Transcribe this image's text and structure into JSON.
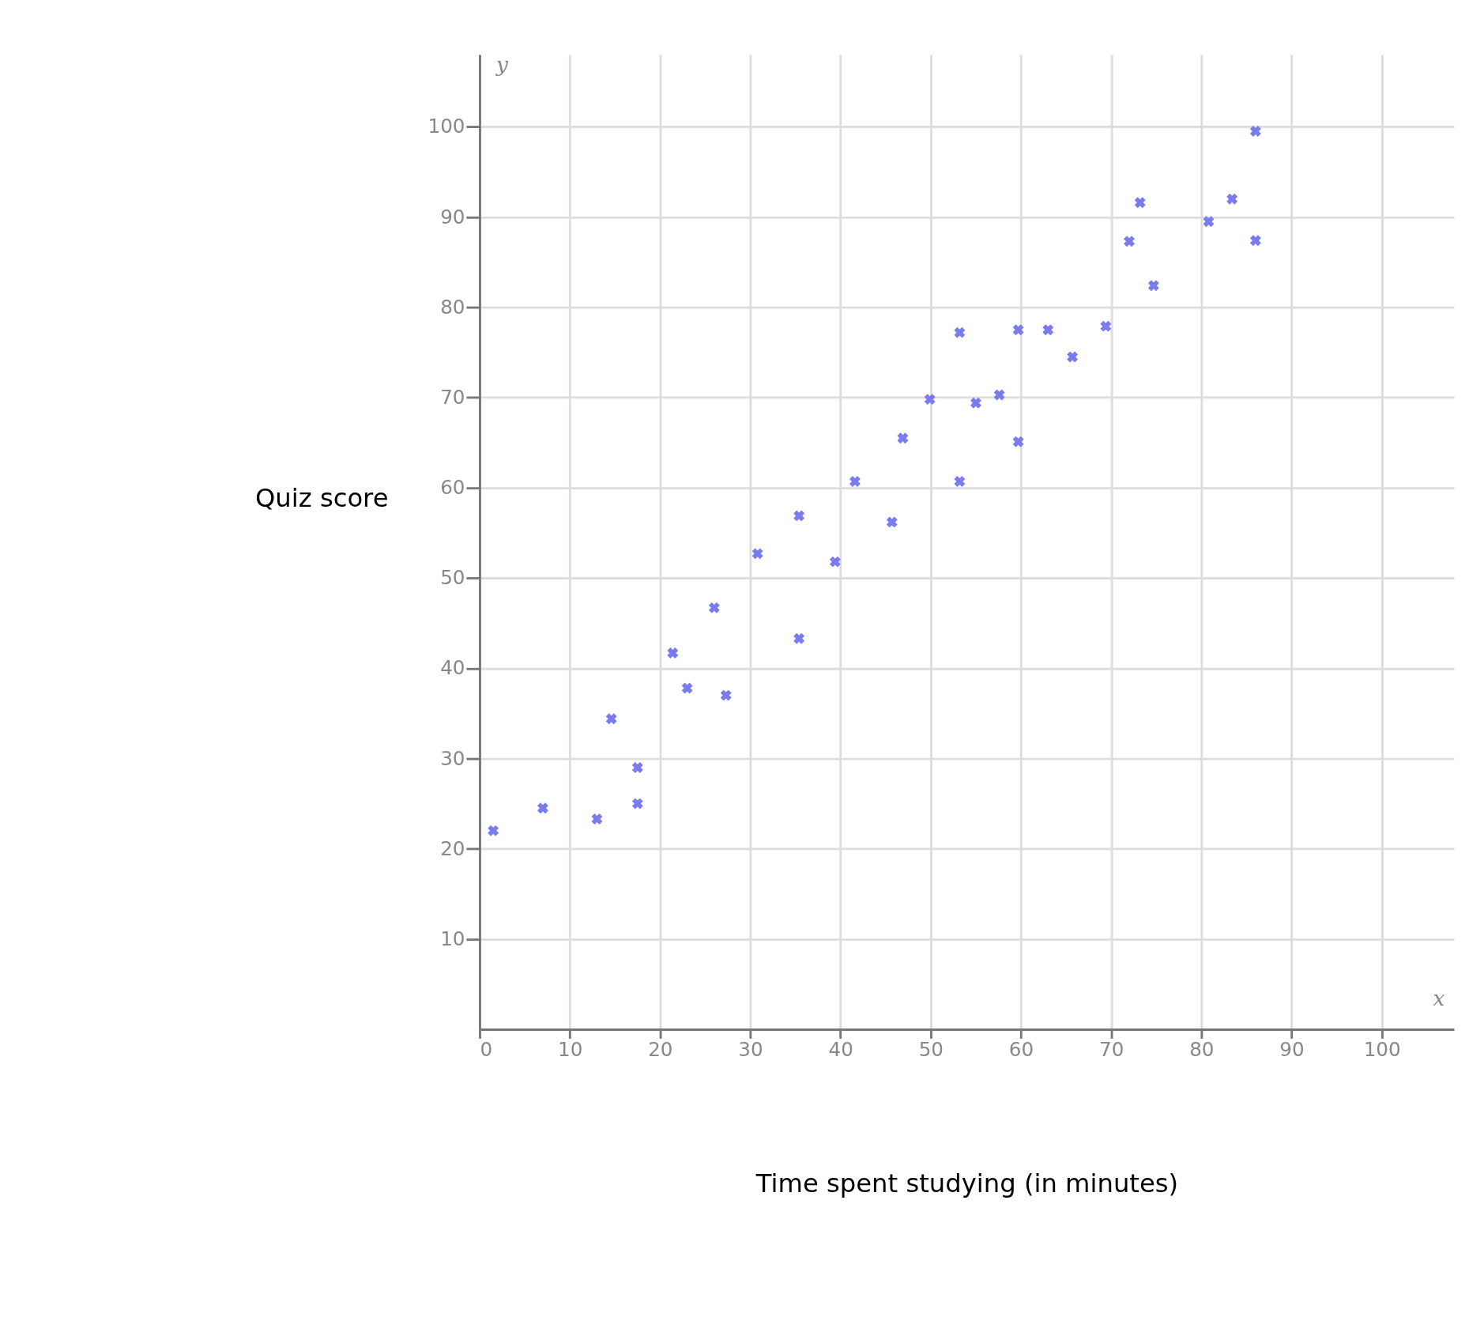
{
  "chart_data": {
    "type": "scatter",
    "xlabel": "Time spent studying (in minutes)",
    "ylabel": "Quiz score",
    "x": [
      1.5,
      7,
      13,
      14.6,
      17.5,
      17.5,
      21.4,
      23,
      26,
      27.3,
      30.8,
      35.4,
      35.4,
      39.4,
      41.6,
      45.7,
      46.9,
      49.9,
      53.2,
      53.2,
      55,
      57.6,
      59.7,
      59.7,
      63,
      65.7,
      69.4,
      72,
      73.2,
      74.7,
      80.8,
      83.4,
      86,
      86
    ],
    "series": [
      {
        "color": "#7b7bf0",
        "values": [
          22,
          24.5,
          23.3,
          34.4,
          29,
          25,
          41.7,
          37.8,
          46.7,
          37,
          52.7,
          56.9,
          43.3,
          51.8,
          60.7,
          56.2,
          65.5,
          69.8,
          77.2,
          60.7,
          69.4,
          70.3,
          77.5,
          65.1,
          77.5,
          74.5,
          77.9,
          87.3,
          91.6,
          82.4,
          89.5,
          92,
          99.5,
          87.4
        ]
      }
    ],
    "xlim": [
      0,
      108
    ],
    "ylim": [
      0,
      108
    ],
    "xticks": [
      0,
      10,
      20,
      30,
      40,
      50,
      60,
      70,
      80,
      90,
      100
    ],
    "yticks": [
      10,
      20,
      30,
      40,
      50,
      60,
      70,
      80,
      90,
      100
    ],
    "marker": "cross",
    "grid": true,
    "annotations": [
      "x",
      "y"
    ]
  }
}
